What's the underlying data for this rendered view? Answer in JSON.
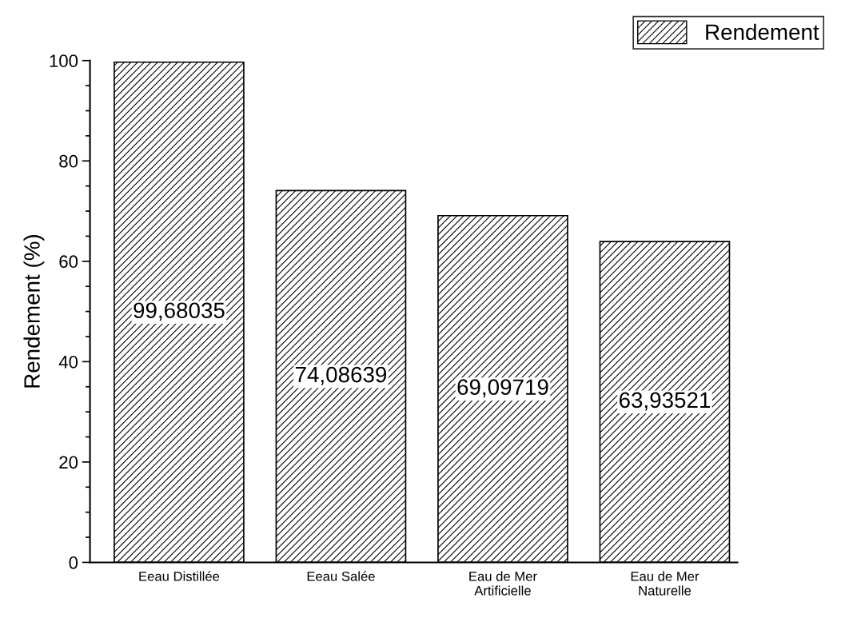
{
  "chart_data": {
    "type": "bar",
    "ylabel": "Rendement (%)",
    "categories": [
      "Eeau Distillée",
      "Eeau Salée",
      "Eau de Mer\nArtificielle",
      "Eau de Mer\nNaturelle"
    ],
    "series": [
      {
        "name": "Rendement",
        "color": "#000000",
        "values": [
          99.68035,
          74.08639,
          69.09719,
          63.93521
        ],
        "value_labels": [
          "99,68035",
          "74,08639",
          "69,09719",
          "63,93521"
        ]
      }
    ],
    "ylim": [
      0,
      100
    ],
    "yticks": [
      0,
      20,
      40,
      60,
      80,
      100
    ],
    "grid": false,
    "legend": "top right"
  }
}
